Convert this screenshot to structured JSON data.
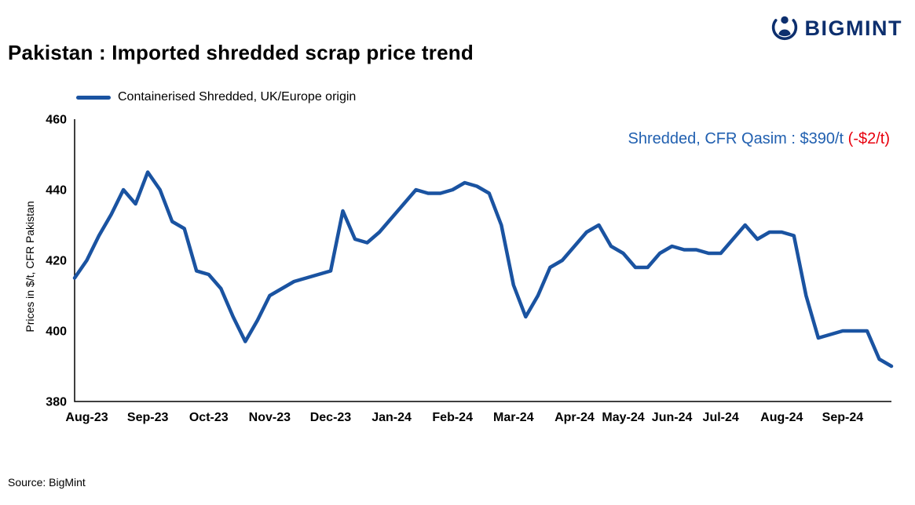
{
  "header": {
    "title": "Pakistan : Imported shredded scrap price trend",
    "logo_text": "BIGMINT",
    "logo_color": "#0d2f6e"
  },
  "legend": {
    "label": "Containerised Shredded, UK/Europe origin"
  },
  "annotation": {
    "main": "Shredded, CFR Qasim : $390/t ",
    "delta": "(-$2/t)",
    "main_color": "#2160b0",
    "delta_color": "#e8000d"
  },
  "footer": {
    "source": "Source: BigMint"
  },
  "chart_data": {
    "type": "line",
    "title": "Pakistan : Imported shredded scrap price trend",
    "ylabel": "Prices in $/t, CFR Pakistan",
    "ylim": [
      380,
      460
    ],
    "yticks": [
      380,
      400,
      420,
      440,
      460
    ],
    "grid": false,
    "legend_position": "top-left",
    "line_color": "#1a53a1",
    "series_name": "Containerised Shredded, UK/Europe origin",
    "months": [
      {
        "label": "Aug-23",
        "count": 5
      },
      {
        "label": "Sep-23",
        "count": 5
      },
      {
        "label": "Oct-23",
        "count": 5
      },
      {
        "label": "Nov-23",
        "count": 5
      },
      {
        "label": "Dec-23",
        "count": 5
      },
      {
        "label": "Jan-24",
        "count": 5
      },
      {
        "label": "Feb-24",
        "count": 5
      },
      {
        "label": "Mar-24",
        "count": 5
      },
      {
        "label": "Apr-24",
        "count": 4
      },
      {
        "label": "May-24",
        "count": 4
      },
      {
        "label": "Jun-24",
        "count": 4
      },
      {
        "label": "Jul-24",
        "count": 5
      },
      {
        "label": "Aug-24",
        "count": 5
      },
      {
        "label": "Sep-24",
        "count": 6
      }
    ],
    "values": [
      415,
      420,
      427,
      433,
      440,
      436,
      445,
      440,
      431,
      429,
      417,
      416,
      412,
      404,
      397,
      403,
      410,
      412,
      414,
      415,
      416,
      417,
      434,
      426,
      425,
      428,
      432,
      436,
      440,
      439,
      439,
      440,
      442,
      441,
      439,
      430,
      413,
      404,
      410,
      418,
      420,
      424,
      428,
      430,
      424,
      422,
      418,
      418,
      422,
      424,
      423,
      423,
      422,
      422,
      426,
      430,
      426,
      428,
      428,
      427,
      410,
      398,
      399,
      400,
      400,
      400,
      392,
      390
    ],
    "latest_price_label": "Shredded, CFR Qasim : $390/t",
    "latest_change_label": "(-$2/t)"
  }
}
